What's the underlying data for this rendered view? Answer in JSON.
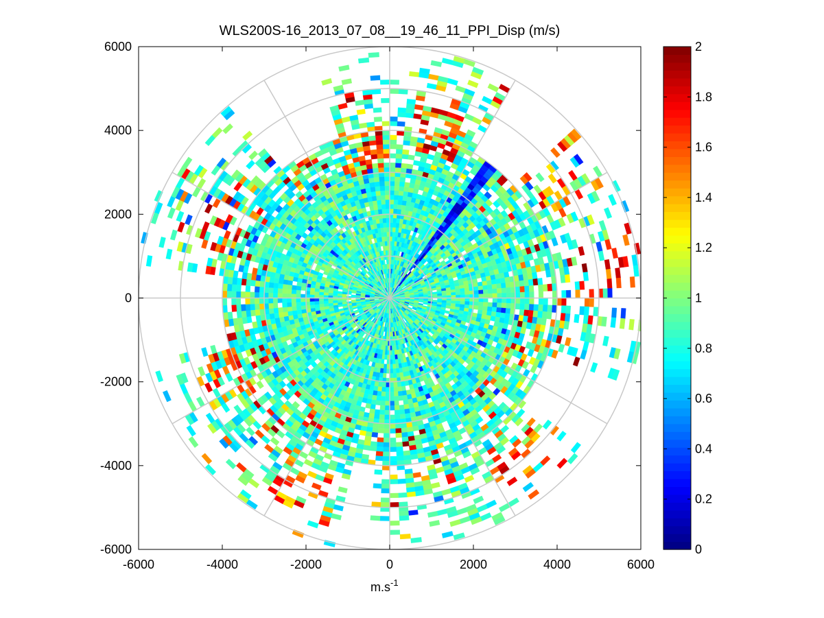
{
  "chart_data": {
    "type": "heatmap",
    "subtype": "polar-ppi-scan",
    "title": "WLS200S-16_2013_07_08__19_46_11_PPI_Disp (m/s)",
    "xlabel_base": "m.s",
    "xlabel_sup": "-1",
    "ylabel": "",
    "xlim": [
      -6000,
      6000
    ],
    "ylim": [
      -6000,
      6000
    ],
    "xticks": [
      -6000,
      -4000,
      -2000,
      0,
      2000,
      4000,
      6000
    ],
    "yticks": [
      6000,
      4000,
      2000,
      0,
      -2000,
      -4000,
      -6000
    ],
    "xtick_labels": [
      "-6000",
      "-4000",
      "-2000",
      "0",
      "2000",
      "4000",
      "6000"
    ],
    "ytick_labels": [
      "6000",
      "4000",
      "2000",
      "0",
      "-2000",
      "-4000",
      "-6000"
    ],
    "polar_grid": {
      "ring_radii": [
        1000,
        2000,
        3000,
        4000,
        5000,
        6000
      ],
      "spoke_angles_deg": [
        0,
        30,
        60,
        90,
        120,
        150,
        180,
        210,
        240,
        270,
        300,
        330
      ]
    },
    "colorbar": {
      "colormap": "jet",
      "min": 0,
      "max": 2,
      "ticks": [
        2,
        1.8,
        1.6,
        1.4,
        1.2,
        1,
        0.8,
        0.6,
        0.4,
        0.2,
        0
      ],
      "tick_labels": [
        "2",
        "1.8",
        "1.6",
        "1.4",
        "1.2",
        "1",
        "0.8",
        "0.6",
        "0.4",
        "0.2",
        "0"
      ]
    },
    "scan": {
      "max_range_m": 6000,
      "dense_range_m": 4000,
      "mean_value_near": 0.85,
      "high_value_sectors": [
        {
          "center_azimuth_deg": 15,
          "range_from_m": 3500,
          "range_to_m": 5200,
          "value": 1.95
        },
        {
          "center_azimuth_deg": -12,
          "range_from_m": 3000,
          "range_to_m": 4000,
          "value": 1.9
        },
        {
          "center_azimuth_deg": 55,
          "range_from_m": 4200,
          "range_to_m": 5900,
          "value": 1.9
        },
        {
          "center_azimuth_deg": 82,
          "range_from_m": 4300,
          "range_to_m": 6000,
          "value": 2.0
        },
        {
          "center_azimuth_deg": -68,
          "range_from_m": 3800,
          "range_to_m": 4800,
          "value": 1.95
        },
        {
          "center_azimuth_deg": -117,
          "range_from_m": 3800,
          "range_to_m": 5000,
          "value": 1.9
        },
        {
          "center_azimuth_deg": 140,
          "range_from_m": 4500,
          "range_to_m": 5800,
          "value": 1.9
        },
        {
          "center_azimuth_deg": -158,
          "range_from_m": 4500,
          "range_to_m": 5900,
          "value": 1.85
        }
      ],
      "empty_sectors_beyond_4000m": [
        {
          "from_deg": 28,
          "to_deg": 45
        },
        {
          "from_deg": -40,
          "to_deg": -20
        },
        {
          "from_deg": -105,
          "to_deg": -85
        },
        {
          "from_deg": 110,
          "to_deg": 125
        },
        {
          "from_deg": -175,
          "to_deg": -168
        }
      ],
      "low_value_ray_azimuth_deg": 36,
      "blocked_ray_azimuth_deg": 0
    }
  }
}
